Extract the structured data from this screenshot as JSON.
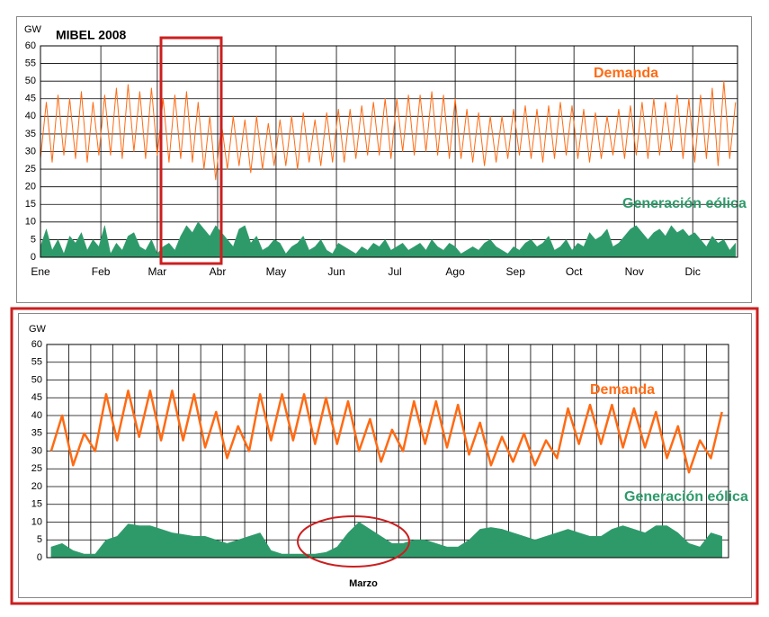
{
  "chart_data": [
    {
      "type": "line",
      "title": "MIBEL 2008",
      "ylabel": "GW",
      "xlim": [
        0,
        358
      ],
      "xticks": [
        {
          "value": 0,
          "label": "Ene"
        },
        {
          "value": 31,
          "label": "Feb"
        },
        {
          "value": 60,
          "label": "Mar"
        },
        {
          "value": 91,
          "label": "Abr"
        },
        {
          "value": 121,
          "label": "May"
        },
        {
          "value": 152,
          "label": "Jun"
        },
        {
          "value": 182,
          "label": "Jul"
        },
        {
          "value": 213,
          "label": "Ago"
        },
        {
          "value": 244,
          "label": "Sep"
        },
        {
          "value": 274,
          "label": "Oct"
        },
        {
          "value": 305,
          "label": "Nov"
        },
        {
          "value": 335,
          "label": "Dic"
        }
      ],
      "xtick_labels": true,
      "ylim": [
        0,
        60
      ],
      "yticks": [
        0,
        5,
        10,
        15,
        20,
        25,
        30,
        35,
        40,
        45,
        50,
        55,
        60
      ],
      "grid": true,
      "x": [
        0,
        3,
        6,
        9,
        12,
        15,
        18,
        21,
        24,
        27,
        30,
        33,
        36,
        39,
        42,
        45,
        48,
        51,
        54,
        57,
        60,
        63,
        66,
        69,
        72,
        75,
        78,
        81,
        84,
        87,
        90,
        93,
        96,
        99,
        102,
        105,
        108,
        111,
        114,
        117,
        120,
        123,
        126,
        129,
        132,
        135,
        138,
        141,
        144,
        147,
        150,
        153,
        156,
        159,
        162,
        165,
        168,
        171,
        174,
        177,
        180,
        183,
        186,
        189,
        192,
        195,
        198,
        201,
        204,
        207,
        210,
        213,
        216,
        219,
        222,
        225,
        228,
        231,
        234,
        237,
        240,
        243,
        246,
        249,
        252,
        255,
        258,
        261,
        264,
        267,
        270,
        273,
        276,
        279,
        282,
        285,
        288,
        291,
        294,
        297,
        300,
        303,
        306,
        309,
        312,
        315,
        318,
        321,
        324,
        327,
        330,
        333,
        336,
        339,
        342,
        345,
        348,
        351,
        354,
        357
      ],
      "series": [
        {
          "name": "Demanda",
          "color": "#ff6a13",
          "style": "line",
          "values": [
            28,
            44,
            27,
            46,
            29,
            45,
            28,
            47,
            27,
            44,
            29,
            46,
            29,
            48,
            28,
            49,
            30,
            47,
            28,
            48,
            29,
            45,
            27,
            46,
            28,
            47,
            27,
            44,
            25,
            40,
            22,
            38,
            25,
            40,
            26,
            39,
            24,
            40,
            25,
            38,
            26,
            39,
            26,
            40,
            25,
            41,
            27,
            39,
            26,
            41,
            27,
            42,
            27,
            42,
            28,
            43,
            29,
            44,
            29,
            45,
            28,
            45,
            30,
            46,
            29,
            46,
            30,
            47,
            29,
            46,
            28,
            45,
            28,
            42,
            27,
            41,
            26,
            40,
            27,
            40,
            28,
            42,
            29,
            43,
            28,
            42,
            27,
            43,
            28,
            44,
            29,
            43,
            28,
            42,
            27,
            41,
            28,
            40,
            29,
            42,
            28,
            43,
            29,
            44,
            28,
            45,
            29,
            44,
            30,
            46,
            28,
            45,
            27,
            46,
            28,
            48,
            26,
            50,
            28,
            44
          ]
        },
        {
          "name": "Generación eólica",
          "color": "#2e9a6a",
          "style": "area",
          "values": [
            3,
            8,
            2,
            5,
            1,
            6,
            4,
            7,
            2,
            5,
            3,
            9,
            1,
            4,
            2,
            6,
            7,
            3,
            2,
            5,
            1,
            3,
            4,
            2,
            6,
            9,
            7,
            10,
            8,
            6,
            9,
            7,
            5,
            3,
            8,
            9,
            4,
            6,
            2,
            3,
            5,
            4,
            1,
            3,
            4,
            6,
            2,
            3,
            5,
            2,
            1,
            4,
            3,
            2,
            1,
            3,
            2,
            4,
            3,
            5,
            2,
            3,
            4,
            2,
            3,
            4,
            2,
            5,
            3,
            2,
            4,
            3,
            1,
            2,
            3,
            2,
            4,
            5,
            3,
            2,
            1,
            3,
            2,
            4,
            5,
            3,
            4,
            6,
            2,
            3,
            5,
            2,
            4,
            3,
            7,
            5,
            6,
            8,
            3,
            4,
            6,
            8,
            9,
            7,
            5,
            7,
            8,
            6,
            9,
            7,
            8,
            6,
            7,
            5,
            3,
            6,
            4,
            5,
            2,
            4
          ]
        }
      ]
    },
    {
      "type": "line",
      "ylabel": "GW",
      "xlabel": "Marzo",
      "xlim": [
        0,
        31
      ],
      "xticks": [
        0,
        1,
        2,
        3,
        4,
        5,
        6,
        7,
        8,
        9,
        10,
        11,
        12,
        13,
        14,
        15,
        16,
        17,
        18,
        19,
        20,
        21,
        22,
        23,
        24,
        25,
        26,
        27,
        28,
        29,
        30,
        31
      ],
      "xtick_labels": false,
      "ylim": [
        0,
        60
      ],
      "yticks": [
        0,
        5,
        10,
        15,
        20,
        25,
        30,
        35,
        40,
        45,
        50,
        55,
        60
      ],
      "grid": true,
      "x": [
        0.2,
        0.7,
        1.2,
        1.7,
        2.2,
        2.7,
        3.2,
        3.7,
        4.2,
        4.7,
        5.2,
        5.7,
        6.2,
        6.7,
        7.2,
        7.7,
        8.2,
        8.7,
        9.2,
        9.7,
        10.2,
        10.7,
        11.2,
        11.7,
        12.2,
        12.7,
        13.2,
        13.7,
        14.2,
        14.7,
        15.2,
        15.7,
        16.2,
        16.7,
        17.2,
        17.7,
        18.2,
        18.7,
        19.2,
        19.7,
        20.2,
        20.7,
        21.2,
        21.7,
        22.2,
        22.7,
        23.2,
        23.7,
        24.2,
        24.7,
        25.2,
        25.7,
        26.2,
        26.7,
        27.2,
        27.7,
        28.2,
        28.7,
        29.2,
        29.7,
        30.2,
        30.7
      ],
      "series": [
        {
          "name": "Demanda",
          "color": "#ff6a13",
          "style": "line",
          "values": [
            30,
            40,
            26,
            35,
            30,
            46,
            33,
            47,
            34,
            47,
            33,
            47,
            33,
            46,
            31,
            41,
            28,
            37,
            30,
            46,
            33,
            46,
            33,
            46,
            32,
            45,
            32,
            44,
            30,
            39,
            27,
            36,
            30,
            44,
            32,
            44,
            31,
            43,
            29,
            38,
            26,
            34,
            27,
            35,
            26,
            33,
            28,
            42,
            32,
            43,
            32,
            43,
            31,
            42,
            31,
            41,
            28,
            37,
            24,
            33,
            28,
            41
          ]
        },
        {
          "name": "Generación eólica",
          "color": "#2e9a6a",
          "style": "area",
          "values": [
            3,
            4,
            2,
            1,
            1,
            5,
            6,
            9.5,
            9,
            9,
            8,
            7,
            6.5,
            6,
            6,
            5,
            4,
            5,
            6,
            7,
            2,
            1,
            1,
            1,
            1,
            1.5,
            3,
            7,
            10,
            8,
            6,
            4,
            4,
            5,
            5,
            4,
            3,
            3,
            5,
            8,
            8.5,
            8,
            7,
            6,
            5,
            6,
            7,
            8,
            7,
            6,
            6,
            8,
            9,
            8,
            7,
            9,
            9,
            7,
            4,
            3,
            7,
            6
          ]
        }
      ]
    }
  ]
}
